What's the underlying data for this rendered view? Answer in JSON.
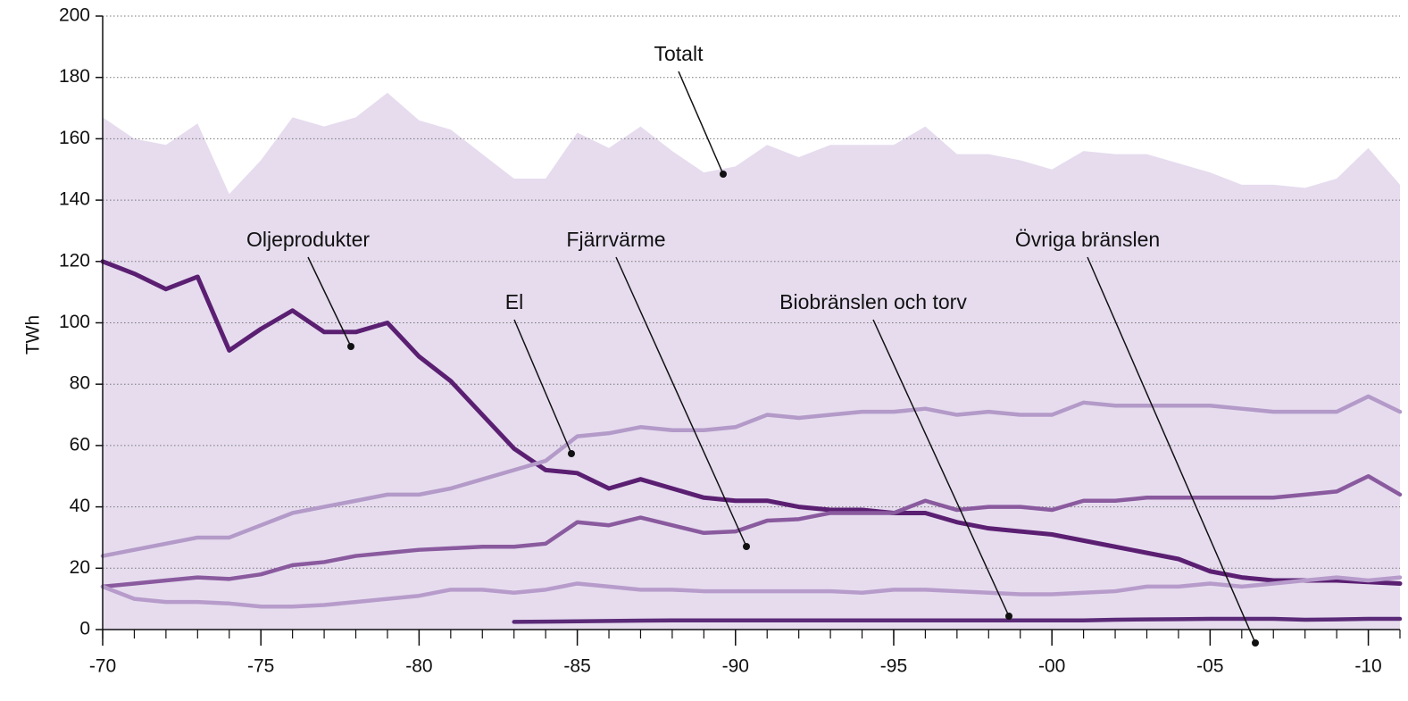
{
  "chart_data": {
    "type": "line",
    "ylabel": "TWh",
    "x": [
      1970,
      1971,
      1972,
      1973,
      1974,
      1975,
      1976,
      1977,
      1978,
      1979,
      1980,
      1981,
      1982,
      1983,
      1984,
      1985,
      1986,
      1987,
      1988,
      1989,
      1990,
      1991,
      1992,
      1993,
      1994,
      1995,
      1996,
      1997,
      1998,
      1999,
      2000,
      2001,
      2002,
      2003,
      2004,
      2005,
      2006,
      2007,
      2008,
      2009,
      2010,
      2011
    ],
    "xlim": [
      1970,
      2011
    ],
    "xticks": [
      {
        "value": 1970,
        "label": "-70"
      },
      {
        "value": 1975,
        "label": "-75"
      },
      {
        "value": 1980,
        "label": "-80"
      },
      {
        "value": 1985,
        "label": "-85"
      },
      {
        "value": 1990,
        "label": "-90"
      },
      {
        "value": 1995,
        "label": "-95"
      },
      {
        "value": 2000,
        "label": "-00"
      },
      {
        "value": 2005,
        "label": "-05"
      },
      {
        "value": 2010,
        "label": "-10"
      }
    ],
    "ylim": [
      0,
      200
    ],
    "yticks": [
      0,
      20,
      40,
      60,
      80,
      100,
      120,
      140,
      160,
      180,
      200
    ],
    "grid": true,
    "series": [
      {
        "name": "Totalt",
        "color": "#e6dcee",
        "fill": true,
        "values": [
          167,
          160,
          158,
          165,
          142,
          153,
          167,
          164,
          167,
          175,
          166,
          163,
          155,
          147,
          147,
          162,
          157,
          164,
          156,
          149,
          151,
          158,
          154,
          158,
          158,
          158,
          164,
          155,
          155,
          153,
          150,
          156,
          155,
          155,
          152,
          149,
          145,
          145,
          144,
          147,
          157,
          145
        ]
      },
      {
        "name": "Oljeprodukter",
        "color": "#5b1f72",
        "values": [
          120,
          116,
          111,
          115,
          91,
          98,
          104,
          97,
          97,
          100,
          89,
          81,
          70,
          59,
          52,
          51,
          46,
          49,
          46,
          43,
          42,
          42,
          40,
          39,
          39,
          38,
          38,
          35,
          33,
          32,
          31,
          29,
          27,
          25,
          23,
          19,
          17,
          16,
          16,
          16,
          15.5,
          15
        ]
      },
      {
        "name": "El",
        "color": "#b39ac8",
        "values": [
          24,
          26,
          28,
          30,
          30,
          34,
          38,
          40,
          42,
          44,
          44,
          46,
          49,
          52,
          55,
          63,
          64,
          66,
          65,
          65,
          66,
          70,
          69,
          70,
          71,
          71,
          72,
          70,
          71,
          70,
          70,
          74,
          73,
          73,
          73,
          73,
          72,
          71,
          71,
          71,
          76,
          71
        ]
      },
      {
        "name": "Fjärrvärme",
        "color": "#8a5a9e",
        "values": [
          14,
          15,
          16,
          17,
          16.5,
          18,
          21,
          22,
          24,
          25,
          26,
          26.5,
          27,
          27,
          28,
          35,
          34,
          36.5,
          34,
          31.5,
          32,
          35.5,
          36,
          38,
          38,
          38,
          42,
          39,
          40,
          40,
          39,
          42,
          42,
          43,
          43,
          43,
          43,
          43,
          44,
          45,
          50,
          44
        ]
      },
      {
        "name": "Biobränslen och torv",
        "color": "#b79ccb",
        "values": [
          14,
          10,
          9,
          9,
          8.5,
          7.5,
          7.5,
          8,
          9,
          10,
          11,
          13,
          13,
          12,
          13,
          15,
          14,
          13,
          13,
          12.5,
          12.5,
          12.5,
          12.5,
          12.5,
          12,
          13,
          13,
          12.5,
          12,
          11.5,
          11.5,
          12,
          12.5,
          14,
          14,
          15,
          14,
          15,
          16,
          17,
          16,
          17
        ]
      },
      {
        "name": "Övriga bränslen",
        "color": "#5b2a78",
        "values": [
          null,
          null,
          null,
          null,
          null,
          null,
          null,
          null,
          null,
          null,
          null,
          null,
          null,
          2.5,
          2.6,
          2.7,
          2.8,
          2.9,
          3,
          3,
          3,
          3,
          3,
          3,
          3,
          3,
          3,
          3,
          3,
          3,
          3,
          3,
          3.2,
          3.3,
          3.4,
          3.5,
          3.5,
          3.5,
          3.2,
          3.3,
          3.5,
          3.5
        ]
      }
    ]
  }
}
